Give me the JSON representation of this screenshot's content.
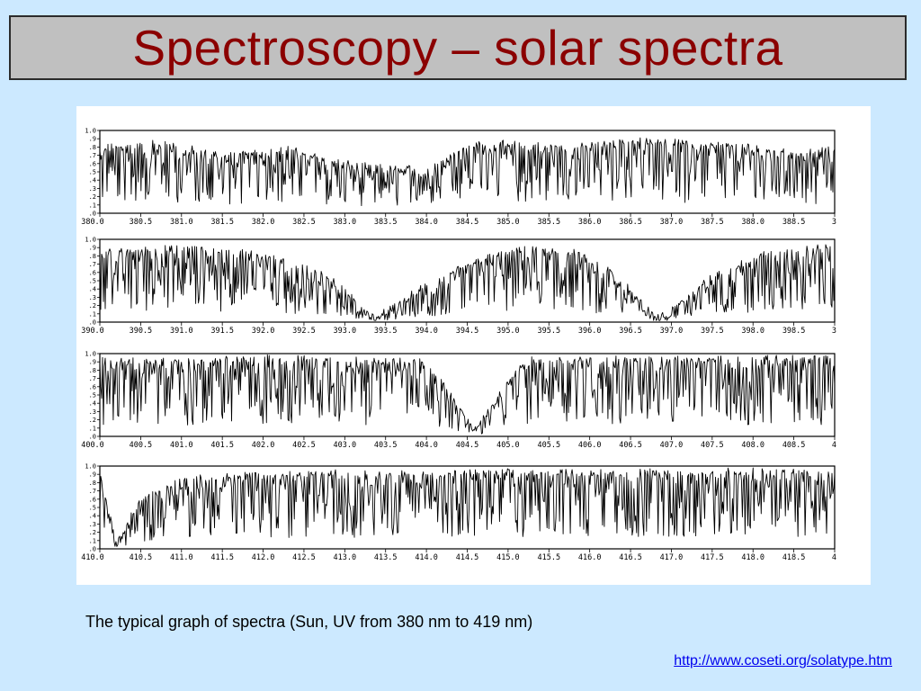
{
  "slide": {
    "title": "Spectroscopy – solar spectra",
    "caption": "The typical graph of spectra (Sun, UV from 380 nm to 419 nm)",
    "link": "http://www.coseti.org/solatype.htm"
  },
  "colors": {
    "background": "#cce9ff",
    "title_text": "#8b0000",
    "title_box": "#c0c0c0",
    "link": "#0000ee"
  },
  "chart_data": [
    {
      "type": "line",
      "xlim": [
        380.0,
        389.0
      ],
      "ylim": [
        0.0,
        1.0
      ],
      "x_ticks": [
        "380.0",
        "380.5",
        "381.0",
        "381.5",
        "382.0",
        "382.5",
        "383.0",
        "383.5",
        "384.0",
        "384.5",
        "385.0",
        "385.5",
        "386.0",
        "386.5",
        "387.0",
        "387.5",
        "388.0",
        "388.5",
        "3"
      ],
      "y_ticks": [
        "1.0",
        ".9",
        ".8",
        ".7",
        ".6",
        ".5",
        ".4",
        ".3",
        ".2",
        ".1",
        ".0"
      ],
      "envelope": {
        "x": [
          380.0,
          380.8,
          381.5,
          382.3,
          383.0,
          383.5,
          384.0,
          384.5,
          385.0,
          385.8,
          386.5,
          387.2,
          388.0,
          388.6,
          389.0
        ],
        "y": [
          0.8,
          0.85,
          0.7,
          0.78,
          0.6,
          0.55,
          0.55,
          0.82,
          0.85,
          0.8,
          0.88,
          0.85,
          0.8,
          0.72,
          0.78
        ]
      }
    },
    {
      "type": "line",
      "xlim": [
        390.0,
        399.0
      ],
      "ylim": [
        0.0,
        1.0
      ],
      "x_ticks": [
        "390.0",
        "390.5",
        "391.0",
        "391.5",
        "392.0",
        "392.5",
        "393.0",
        "393.5",
        "394.0",
        "394.5",
        "395.0",
        "395.5",
        "396.0",
        "396.5",
        "397.0",
        "397.5",
        "398.0",
        "398.5",
        "3"
      ],
      "y_ticks": [
        "1.0",
        ".9",
        ".8",
        ".7",
        ".6",
        ".5",
        ".4",
        ".3",
        ".2",
        ".1",
        ".0"
      ],
      "envelope": {
        "x": [
          390.0,
          391.0,
          392.0,
          392.8,
          393.37,
          394.0,
          394.6,
          395.2,
          395.8,
          396.3,
          396.85,
          397.5,
          398.2,
          399.0
        ],
        "y": [
          0.85,
          0.9,
          0.82,
          0.55,
          0.05,
          0.45,
          0.75,
          0.88,
          0.85,
          0.6,
          0.05,
          0.55,
          0.85,
          0.92
        ]
      }
    },
    {
      "type": "line",
      "xlim": [
        400.0,
        409.0
      ],
      "ylim": [
        0.0,
        1.0
      ],
      "x_ticks": [
        "400.0",
        "400.5",
        "401.0",
        "401.5",
        "402.0",
        "402.5",
        "403.0",
        "403.5",
        "404.0",
        "404.5",
        "405.0",
        "405.5",
        "406.0",
        "406.5",
        "407.0",
        "407.5",
        "408.0",
        "408.5",
        "4"
      ],
      "y_ticks": [
        "1.0",
        ".9",
        ".8",
        ".7",
        ".6",
        ".5",
        ".4",
        ".3",
        ".2",
        ".1",
        ".0"
      ],
      "envelope": {
        "x": [
          400.0,
          401.0,
          402.0,
          403.0,
          404.0,
          404.6,
          405.2,
          406.0,
          407.0,
          408.0,
          409.0
        ],
        "y": [
          0.92,
          0.9,
          0.95,
          0.93,
          0.9,
          0.1,
          0.92,
          0.94,
          0.93,
          0.94,
          0.95
        ]
      }
    },
    {
      "type": "line",
      "xlim": [
        410.0,
        419.0
      ],
      "ylim": [
        0.0,
        1.0
      ],
      "x_ticks": [
        "410.0",
        "410.5",
        "411.0",
        "411.5",
        "412.0",
        "412.5",
        "413.0",
        "413.5",
        "414.0",
        "414.5",
        "415.0",
        "415.5",
        "416.0",
        "416.5",
        "417.0",
        "417.5",
        "418.0",
        "418.5",
        "4"
      ],
      "y_ticks": [
        "1.0",
        ".9",
        ".8",
        ".7",
        ".6",
        ".5",
        ".4",
        ".3",
        ".2",
        ".1",
        ".0"
      ],
      "envelope": {
        "x": [
          410.0,
          410.2,
          410.5,
          411.0,
          412.0,
          413.0,
          414.0,
          415.0,
          416.0,
          417.0,
          418.0,
          419.0
        ],
        "y": [
          0.9,
          0.1,
          0.6,
          0.85,
          0.9,
          0.92,
          0.9,
          0.93,
          0.92,
          0.93,
          0.94,
          0.93
        ]
      }
    }
  ]
}
